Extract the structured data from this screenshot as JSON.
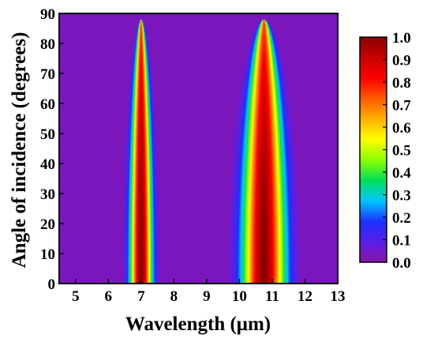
{
  "chart_data": {
    "type": "heatmap",
    "xlabel": "Wavelength (μm)",
    "ylabel": "Angle of incidence (degrees)",
    "x_ticks": [
      5,
      6,
      7,
      8,
      9,
      10,
      11,
      12,
      13
    ],
    "y_ticks": [
      0,
      10,
      20,
      30,
      40,
      50,
      60,
      70,
      80,
      90
    ],
    "xlim": [
      4.5,
      13
    ],
    "ylim": [
      0,
      90
    ],
    "colorbar": {
      "min": 0.0,
      "max": 1.0,
      "ticks": [
        "0.0",
        "0.1",
        "0.2",
        "0.3",
        "0.4",
        "0.5",
        "0.6",
        "0.7",
        "0.8",
        "0.9",
        "1.0"
      ]
    },
    "colormap": [
      "#8a14a6",
      "#5a1ee8",
      "#1a32ff",
      "#00c8ff",
      "#00e05a",
      "#8cff00",
      "#ffff00",
      "#ffb000",
      "#ff5a00",
      "#ff0000",
      "#c80000",
      "#8c0000"
    ],
    "bands": [
      {
        "center_um": 7.0,
        "peak": 1.0,
        "width_normal_um": 0.32,
        "max_angle_deg": 88
      },
      {
        "center_um": 10.75,
        "peak": 1.0,
        "width_normal_um": 0.62,
        "max_angle_deg": 88
      }
    ],
    "background_value": 0.03,
    "grid": false
  }
}
